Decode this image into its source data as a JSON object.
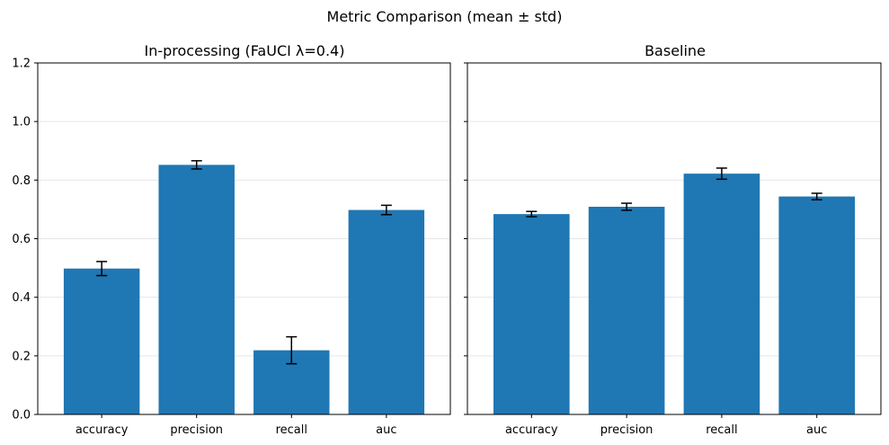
{
  "figure": {
    "title": "Metric Comparison (mean ± std)"
  },
  "colors": {
    "bar": "#1f77b4",
    "error": "#000000",
    "grid": "#e6e6e6",
    "axis": "#000000"
  },
  "chart_data": [
    {
      "type": "bar",
      "title": "In-processing (FaUCI λ=0.4)",
      "categories": [
        "accuracy",
        "precision",
        "recall",
        "auc"
      ],
      "values": [
        0.498,
        0.852,
        0.219,
        0.698
      ],
      "errors": [
        0.024,
        0.014,
        0.046,
        0.016
      ],
      "ylim": [
        0,
        1.2
      ],
      "yticks": [
        "0.0",
        "0.2",
        "0.4",
        "0.6",
        "0.8",
        "1.0",
        "1.2"
      ],
      "ytick_values": [
        0,
        0.2,
        0.4,
        0.6,
        0.8,
        1.0,
        1.2
      ],
      "grid": true
    },
    {
      "type": "bar",
      "title": "Baseline",
      "categories": [
        "accuracy",
        "precision",
        "recall",
        "auc"
      ],
      "values": [
        0.684,
        0.709,
        0.822,
        0.744
      ],
      "errors": [
        0.009,
        0.012,
        0.019,
        0.011
      ],
      "ylim": [
        0,
        1.2
      ],
      "yticks": [
        "0.0",
        "0.2",
        "0.4",
        "0.6",
        "0.8",
        "1.0",
        "1.2"
      ],
      "ytick_values": [
        0,
        0.2,
        0.4,
        0.6,
        0.8,
        1.0,
        1.2
      ],
      "grid": true,
      "shared_y": true
    }
  ]
}
